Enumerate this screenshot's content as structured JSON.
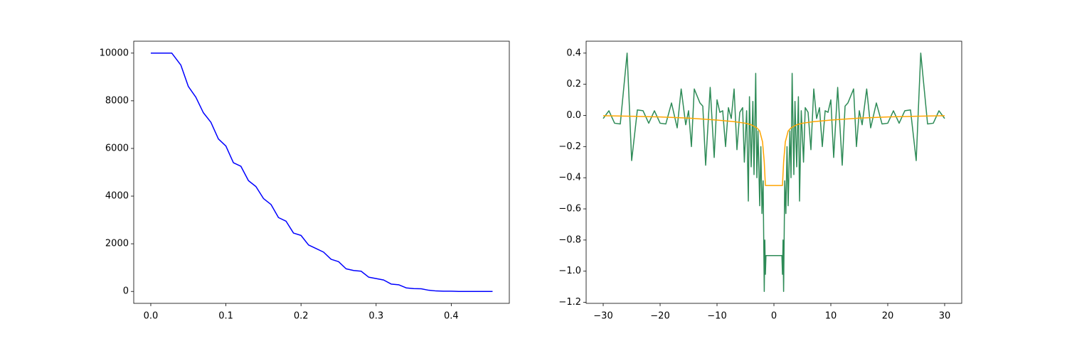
{
  "chart_data": [
    {
      "type": "line",
      "xlim": [
        -0.0227,
        0.4773
      ],
      "ylim": [
        -500,
        10500
      ],
      "xticks": [
        {
          "value": 0,
          "label": "0.0"
        },
        0.1,
        0.2,
        0.3,
        0.4
      ],
      "yticks": [
        0,
        2000,
        4000,
        6000,
        8000,
        10000
      ],
      "series": [
        {
          "color": "#0000ff",
          "x": [
            0,
            0.028,
            0.04,
            0.05,
            0.06,
            0.07,
            0.08,
            0.09,
            0.1,
            0.11,
            0.12,
            0.13,
            0.14,
            0.15,
            0.16,
            0.17,
            0.18,
            0.19,
            0.2,
            0.21,
            0.22,
            0.23,
            0.24,
            0.25,
            0.26,
            0.27,
            0.28,
            0.29,
            0.3,
            0.31,
            0.32,
            0.33,
            0.34,
            0.35,
            0.36,
            0.37,
            0.38,
            0.39,
            0.4,
            0.41,
            0.455
          ],
          "values": [
            10000,
            10000,
            9500,
            8600,
            8150,
            7500,
            7100,
            6400,
            6100,
            5400,
            5250,
            4650,
            4400,
            3900,
            3650,
            3100,
            2950,
            2450,
            2350,
            1950,
            1800,
            1650,
            1350,
            1250,
            950,
            880,
            850,
            600,
            540,
            480,
            310,
            280,
            150,
            120,
            110,
            50,
            20,
            10,
            10,
            0,
            0
          ]
        }
      ]
    },
    {
      "type": "line",
      "xlim": [
        -33,
        33
      ],
      "ylim": [
        -1.2065,
        0.4765
      ],
      "xticks": [
        {
          "value": -30,
          "label": "−30"
        },
        {
          "value": -20,
          "label": "−20"
        },
        {
          "value": -10,
          "label": "−10"
        },
        0,
        10,
        20,
        30
      ],
      "yticks": [
        {
          "value": -1.2,
          "label": "−1.2"
        },
        {
          "value": -1.0,
          "label": "−1.0"
        },
        {
          "value": -0.8,
          "label": "−0.8"
        },
        {
          "value": -0.6,
          "label": "−0.6"
        },
        {
          "value": -0.4,
          "label": "−0.4"
        },
        {
          "value": -0.2,
          "label": "−0.2"
        },
        {
          "value": 0,
          "label": "0.0"
        },
        0.2,
        0.4
      ],
      "series": [
        {
          "color": "#2e8b57",
          "x": [
            -30,
            -29,
            -28,
            -27,
            -25.8,
            -25,
            -24,
            -23,
            -22,
            -21,
            -20,
            -19,
            -18,
            -17,
            -16.3,
            -15.5,
            -15,
            -14.5,
            -14,
            -13,
            -12.5,
            -12,
            -11.2,
            -10.5,
            -10,
            -9.5,
            -9,
            -8.5,
            -8,
            -7.5,
            -7,
            -6.5,
            -6,
            -5.5,
            -5.2,
            -4.8,
            -4.5,
            -4.3,
            -4,
            -3.7,
            -3.5,
            -3.2,
            -3,
            -2.8,
            -2.5,
            -2.3,
            -2.1,
            -1.9,
            -1.7,
            -1.6,
            -1.5,
            -1.4,
            1.4,
            1.5,
            1.6,
            1.7,
            1.9,
            2.1,
            2.3,
            2.5,
            2.8,
            3,
            3.2,
            3.5,
            3.7,
            4,
            4.3,
            4.5,
            4.8,
            5.2,
            5.5,
            6,
            6.5,
            7,
            7.5,
            8,
            8.5,
            9,
            9.5,
            10,
            10.5,
            11.2,
            12,
            12.5,
            13,
            14,
            14.5,
            15,
            15.5,
            16.3,
            17,
            18,
            19,
            20,
            21,
            22,
            23,
            24,
            25,
            25.8,
            27,
            28,
            29,
            30
          ],
          "values": [
            -0.02,
            0.03,
            -0.05,
            -0.055,
            0.4,
            -0.29,
            0.035,
            0.03,
            -0.05,
            0.03,
            -0.05,
            -0.055,
            0.08,
            -0.08,
            0.17,
            -0.06,
            0.03,
            -0.2,
            0.17,
            0.08,
            0.06,
            -0.32,
            0.18,
            -0.27,
            0.1,
            0.02,
            0.03,
            -0.2,
            0.05,
            -0.02,
            0.17,
            -0.22,
            0.02,
            0.05,
            -0.3,
            0.03,
            -0.55,
            0.12,
            -0.33,
            0.09,
            -0.38,
            0.27,
            -0.4,
            -0.1,
            -0.58,
            -0.2,
            -0.63,
            -0.42,
            -1.13,
            -0.8,
            -1.02,
            -0.9,
            -0.9,
            -1.02,
            -0.8,
            -1.13,
            -0.42,
            -0.63,
            -0.2,
            -0.58,
            -0.1,
            -0.4,
            0.27,
            -0.38,
            0.09,
            -0.33,
            0.12,
            -0.55,
            0.03,
            -0.3,
            0.05,
            0.02,
            -0.22,
            0.17,
            -0.02,
            0.05,
            -0.2,
            0.03,
            0.02,
            0.1,
            -0.27,
            0.18,
            -0.32,
            0.06,
            0.08,
            0.17,
            -0.2,
            0.03,
            -0.06,
            0.17,
            -0.08,
            0.08,
            -0.055,
            -0.05,
            0.03,
            -0.05,
            0.03,
            0.035,
            -0.29,
            0.4,
            -0.055,
            -0.05,
            0.03,
            -0.02
          ]
        },
        {
          "color": "#ffa500",
          "x": [
            -30,
            -25,
            -20,
            -15,
            -10,
            -7,
            -5,
            -4,
            -3,
            -2.5,
            -2,
            -1.7,
            -1.5,
            1.5,
            1.7,
            2,
            2.5,
            3,
            4,
            5,
            7,
            10,
            15,
            20,
            25,
            30
          ],
          "values": [
            -0.002,
            -0.005,
            -0.01,
            -0.017,
            -0.03,
            -0.04,
            -0.05,
            -0.06,
            -0.08,
            -0.1,
            -0.17,
            -0.3,
            -0.45,
            -0.45,
            -0.3,
            -0.17,
            -0.1,
            -0.08,
            -0.06,
            -0.05,
            -0.04,
            -0.03,
            -0.017,
            -0.01,
            -0.005,
            -0.002
          ]
        }
      ]
    }
  ]
}
